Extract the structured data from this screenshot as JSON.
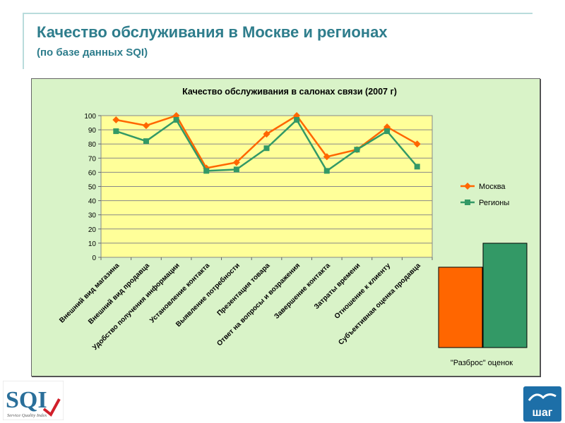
{
  "slide": {
    "title": "Качество обслуживания в Москве и регионах",
    "subtitle": "(по базе данных SQI)"
  },
  "logos": {
    "left_text": "SQI",
    "left_caption": "Service Quality Index",
    "right_text": "шаг"
  },
  "colors": {
    "moscow": "#ff6600",
    "regions": "#339966",
    "plot_bg": "#ffff99",
    "panel_bg": "#d9f3c8",
    "accent": "#2e7d8c"
  },
  "chart_data": [
    {
      "type": "line",
      "title": "Качество обслуживания в салонах связи (2007 г)",
      "categories": [
        "Внешний вид магазина",
        "Внешний вид продавца",
        "Удобство получения информации",
        "Установление контакта",
        "Выявление потребности",
        "Презентация товара",
        "Ответ на вопросы и возражения",
        "Завершение контакта",
        "Затраты времени",
        "Отношение к клиенту",
        "Субъективная оценка продавца"
      ],
      "series": [
        {
          "name": "Москва",
          "values": [
            97,
            93,
            100,
            63,
            67,
            87,
            100,
            71,
            76,
            92,
            80
          ]
        },
        {
          "name": "Регионы",
          "values": [
            89,
            82,
            97,
            61,
            62,
            77,
            97,
            61,
            76,
            89,
            64
          ]
        }
      ],
      "yticks": [
        0,
        10,
        20,
        30,
        40,
        50,
        60,
        70,
        80,
        90,
        100
      ],
      "ylim": [
        0,
        100
      ],
      "grid": true,
      "legend": "right"
    },
    {
      "type": "bar",
      "title": "",
      "categories": [
        "Москва",
        "Регионы"
      ],
      "values": [
        57,
        74
      ],
      "xlabel": "\"Разброс\" оценок"
    }
  ]
}
